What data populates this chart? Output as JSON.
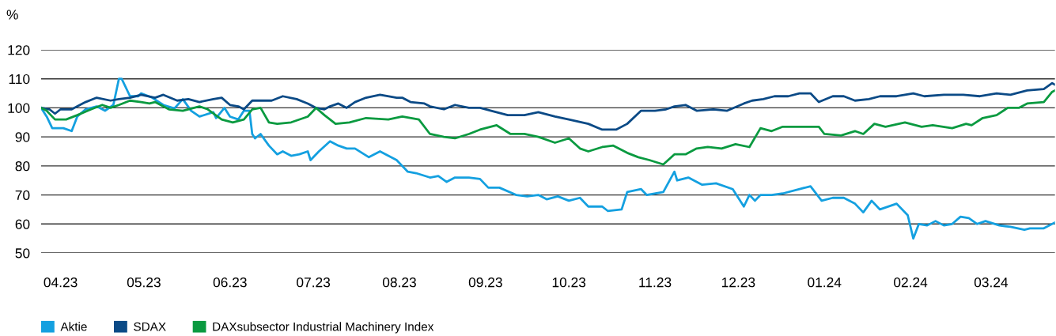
{
  "chart_data": {
    "type": "line",
    "ylabel": "%",
    "xlim": [
      "2023-04-01",
      "2024-03-31"
    ],
    "xticks": [
      {
        "value": "2023-04-08",
        "label": "04.23"
      },
      {
        "value": "2023-05-08",
        "label": "05.23"
      },
      {
        "value": "2023-06-08",
        "label": "06.23"
      },
      {
        "value": "2023-07-08",
        "label": "07.23"
      },
      {
        "value": "2023-08-08",
        "label": "08.23"
      },
      {
        "value": "2023-09-08",
        "label": "09.23"
      },
      {
        "value": "2023-10-08",
        "label": "10.23"
      },
      {
        "value": "2023-11-08",
        "label": "11.23"
      },
      {
        "value": "2023-12-08",
        "label": "12.23"
      },
      {
        "value": "2024-01-08",
        "label": "01.24"
      },
      {
        "value": "2024-02-08",
        "label": "02.24"
      },
      {
        "value": "2024-03-08",
        "label": "03.24"
      }
    ],
    "ylim": [
      50,
      120
    ],
    "yticks": [
      50,
      60,
      70,
      80,
      90,
      100,
      110,
      120
    ],
    "grid": "y",
    "legend": "bottom left",
    "marker": "none",
    "line_style": "solid",
    "series": [
      {
        "name": "Aktie",
        "color": "#14a0e0",
        "x": [
          "2023-04-01",
          "2023-04-03",
          "2023-04-05",
          "2023-04-09",
          "2023-04-12",
          "2023-04-14",
          "2023-04-17",
          "2023-04-21",
          "2023-04-24",
          "2023-04-27",
          "2023-04-29",
          "2023-04-30",
          "2023-05-03",
          "2023-05-06",
          "2023-05-07",
          "2023-05-11",
          "2023-05-15",
          "2023-05-19",
          "2023-05-22",
          "2023-05-25",
          "2023-05-28",
          "2023-06-02",
          "2023-06-03",
          "2023-06-06",
          "2023-06-08",
          "2023-06-11",
          "2023-06-13",
          "2023-06-15",
          "2023-06-16",
          "2023-06-17",
          "2023-06-19",
          "2023-06-22",
          "2023-06-25",
          "2023-06-27",
          "2023-06-30",
          "2023-07-03",
          "2023-07-06",
          "2023-07-07",
          "2023-07-10",
          "2023-07-14",
          "2023-07-17",
          "2023-07-20",
          "2023-07-23",
          "2023-07-28",
          "2023-08-01",
          "2023-08-07",
          "2023-08-11",
          "2023-08-14",
          "2023-08-19",
          "2023-08-22",
          "2023-08-25",
          "2023-08-28",
          "2023-09-02",
          "2023-09-06",
          "2023-09-09",
          "2023-09-13",
          "2023-09-19",
          "2023-09-23",
          "2023-09-27",
          "2023-09-30",
          "2023-10-04",
          "2023-10-08",
          "2023-10-12",
          "2023-10-15",
          "2023-10-20",
          "2023-10-22",
          "2023-10-27",
          "2023-10-29",
          "2023-11-03",
          "2023-11-05",
          "2023-11-11",
          "2023-11-15",
          "2023-11-16",
          "2023-11-20",
          "2023-11-25",
          "2023-11-30",
          "2023-12-06",
          "2023-12-10",
          "2023-12-12",
          "2023-12-14",
          "2023-12-16",
          "2023-12-20",
          "2023-12-24",
          "2024-01-03",
          "2024-01-07",
          "2024-01-11",
          "2024-01-15",
          "2024-01-19",
          "2024-01-22",
          "2024-01-25",
          "2024-01-28",
          "2024-02-03",
          "2024-02-07",
          "2024-02-09",
          "2024-02-11",
          "2024-02-14",
          "2024-02-17",
          "2024-02-20",
          "2024-02-23",
          "2024-02-26",
          "2024-02-29",
          "2024-03-03",
          "2024-03-06",
          "2024-03-11",
          "2024-03-15",
          "2024-03-20",
          "2024-03-22",
          "2024-03-27",
          "2024-03-31"
        ],
        "values": [
          100,
          97,
          93,
          93,
          92,
          97,
          99.5,
          100.5,
          99,
          101,
          110,
          110,
          104,
          104,
          105,
          103.5,
          101,
          99.8,
          103,
          99,
          97,
          98.5,
          96.5,
          100,
          97,
          96,
          99,
          99,
          91,
          89.5,
          91,
          87,
          84,
          85,
          83.5,
          84,
          85,
          82,
          85,
          88.5,
          87,
          86,
          86,
          83,
          85,
          82,
          78,
          77.5,
          76,
          76.5,
          74.5,
          76,
          76,
          75.5,
          72.5,
          72.5,
          70,
          69.5,
          70,
          68.5,
          69.5,
          68,
          69,
          66,
          66,
          64.5,
          65,
          71,
          72,
          70,
          71,
          78,
          75,
          76,
          73.5,
          74,
          72,
          66,
          70,
          68,
          70,
          70,
          70.5,
          73,
          68,
          69,
          69,
          67,
          64,
          68,
          65,
          67,
          63,
          55,
          60,
          59.5,
          61,
          59.5,
          60,
          62.5,
          62,
          60,
          61,
          59.5,
          59,
          58,
          58.5,
          58.5,
          60.5
        ]
      },
      {
        "name": "SDAX",
        "color": "#0b4a86",
        "x": [
          "2023-04-01",
          "2023-04-04",
          "2023-04-06",
          "2023-04-08",
          "2023-04-12",
          "2023-04-14",
          "2023-04-17",
          "2023-04-21",
          "2023-04-26",
          "2023-04-29",
          "2023-05-03",
          "2023-05-07",
          "2023-05-12",
          "2023-05-15",
          "2023-05-20",
          "2023-05-24",
          "2023-05-28",
          "2023-06-02",
          "2023-06-05",
          "2023-06-08",
          "2023-06-11",
          "2023-06-13",
          "2023-06-16",
          "2023-06-19",
          "2023-06-23",
          "2023-06-27",
          "2023-07-02",
          "2023-07-06",
          "2023-07-09",
          "2023-07-12",
          "2023-07-14",
          "2023-07-17",
          "2023-07-20",
          "2023-07-23",
          "2023-07-27",
          "2023-08-01",
          "2023-08-07",
          "2023-08-09",
          "2023-08-12",
          "2023-08-17",
          "2023-08-19",
          "2023-08-24",
          "2023-08-28",
          "2023-09-02",
          "2023-09-06",
          "2023-09-10",
          "2023-09-16",
          "2023-09-22",
          "2023-09-27",
          "2023-10-03",
          "2023-10-08",
          "2023-10-15",
          "2023-10-20",
          "2023-10-25",
          "2023-10-29",
          "2023-11-03",
          "2023-11-08",
          "2023-11-12",
          "2023-11-15",
          "2023-11-19",
          "2023-11-23",
          "2023-11-29",
          "2023-12-04",
          "2023-12-10",
          "2023-12-13",
          "2023-12-17",
          "2023-12-21",
          "2023-12-26",
          "2023-12-30",
          "2024-01-03",
          "2024-01-06",
          "2024-01-11",
          "2024-01-15",
          "2024-01-19",
          "2024-01-24",
          "2024-01-28",
          "2024-02-03",
          "2024-02-09",
          "2024-02-13",
          "2024-02-20",
          "2024-02-27",
          "2024-03-04",
          "2024-03-10",
          "2024-03-15",
          "2024-03-21",
          "2024-03-27",
          "2024-03-30",
          "2024-03-31"
        ],
        "values": [
          100,
          99.5,
          98,
          99.5,
          99.5,
          100.5,
          102,
          103.5,
          102.5,
          103,
          103.5,
          104.5,
          103.5,
          104.5,
          102.5,
          103,
          102,
          103,
          103.5,
          101,
          100.5,
          99.5,
          102.5,
          102.5,
          102.5,
          104,
          103,
          101.5,
          100,
          99.5,
          100.5,
          101.5,
          100,
          102,
          103.5,
          104.5,
          103.5,
          103.5,
          102,
          101.5,
          100.5,
          99.5,
          101,
          100,
          100,
          99,
          97.5,
          97.5,
          98.5,
          97,
          96,
          94.5,
          92.5,
          92.5,
          94.5,
          99,
          99,
          99.5,
          100.5,
          101,
          99,
          99.5,
          99,
          101.5,
          102.5,
          103,
          104,
          104,
          105,
          105,
          102,
          104,
          104,
          102.5,
          103,
          104,
          104,
          105,
          104,
          104.5,
          104.5,
          104,
          105,
          104.5,
          106,
          106.5,
          108.5,
          108
        ]
      },
      {
        "name": "DAXsubsector Industrial Machinery Index",
        "color": "#0a9a40",
        "x": [
          "2023-04-01",
          "2023-04-03",
          "2023-04-06",
          "2023-04-10",
          "2023-04-14",
          "2023-04-19",
          "2023-04-23",
          "2023-04-26",
          "2023-04-29",
          "2023-05-03",
          "2023-05-07",
          "2023-05-10",
          "2023-05-12",
          "2023-05-17",
          "2023-05-22",
          "2023-05-28",
          "2023-05-31",
          "2023-06-05",
          "2023-06-09",
          "2023-06-13",
          "2023-06-16",
          "2023-06-19",
          "2023-06-22",
          "2023-06-25",
          "2023-06-30",
          "2023-07-06",
          "2023-07-09",
          "2023-07-12",
          "2023-07-16",
          "2023-07-21",
          "2023-07-27",
          "2023-08-04",
          "2023-08-09",
          "2023-08-15",
          "2023-08-19",
          "2023-08-24",
          "2023-08-28",
          "2023-09-02",
          "2023-09-06",
          "2023-09-12",
          "2023-09-17",
          "2023-09-22",
          "2023-09-27",
          "2023-10-03",
          "2023-10-08",
          "2023-10-12",
          "2023-10-15",
          "2023-10-20",
          "2023-10-24",
          "2023-10-29",
          "2023-11-02",
          "2023-11-06",
          "2023-11-11",
          "2023-11-15",
          "2023-11-19",
          "2023-11-23",
          "2023-11-27",
          "2023-12-02",
          "2023-12-07",
          "2023-12-12",
          "2023-12-16",
          "2023-12-20",
          "2023-12-24",
          "2023-12-30",
          "2024-01-06",
          "2024-01-08",
          "2024-01-14",
          "2024-01-19",
          "2024-01-22",
          "2024-01-26",
          "2024-01-30",
          "2024-02-06",
          "2024-02-12",
          "2024-02-16",
          "2024-02-23",
          "2024-02-28",
          "2024-03-01",
          "2024-03-05",
          "2024-03-10",
          "2024-03-14",
          "2024-03-18",
          "2024-03-21",
          "2024-03-27",
          "2024-03-30",
          "2024-03-31"
        ],
        "values": [
          100,
          99,
          96,
          96,
          97.5,
          99.5,
          101,
          100,
          101,
          102.5,
          102,
          101.5,
          102,
          99.5,
          99,
          100.5,
          99.5,
          96,
          95,
          96,
          99.5,
          100,
          95,
          94.5,
          95,
          97,
          100,
          97.5,
          94.5,
          95,
          96.5,
          96,
          97,
          96,
          91,
          90,
          89.5,
          91,
          92.5,
          94,
          91,
          91,
          90,
          88,
          89.5,
          86,
          85,
          86.5,
          87,
          84.5,
          83,
          82,
          80.5,
          84,
          84,
          86,
          86.5,
          86,
          87.5,
          86.5,
          93,
          92,
          93.5,
          93.5,
          93.5,
          91,
          90.5,
          92,
          91,
          94.5,
          93.5,
          95,
          93.5,
          94,
          93,
          94.5,
          94,
          96.5,
          97.5,
          100,
          100,
          101.5,
          102,
          105.5,
          106
        ]
      }
    ]
  }
}
